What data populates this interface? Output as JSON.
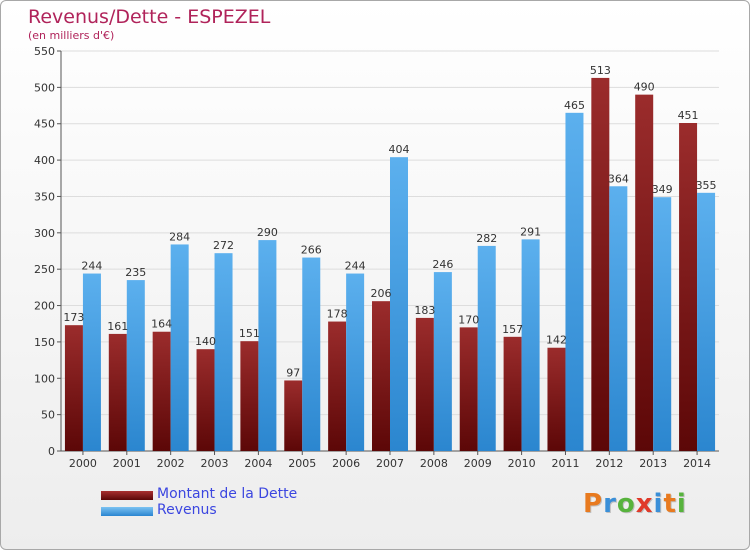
{
  "header": {
    "title": "Revenus/Dette - ESPEZEL",
    "subtitle": "(en milliers d'€)"
  },
  "brand": {
    "text": "Proxiti",
    "letter_colors": [
      "#e87a1f",
      "#3a8fd8",
      "#57b33d",
      "#e03a2a",
      "#3a8fd8",
      "#e87a1f",
      "#57b33d"
    ]
  },
  "colors": {
    "dette": "#7a1010",
    "revenus": "#3d9be0",
    "axis": "#555555",
    "grid": "#dddddd",
    "label": "#333333"
  },
  "chart_data": {
    "type": "bar",
    "categories": [
      "2000",
      "2001",
      "2002",
      "2003",
      "2004",
      "2005",
      "2006",
      "2007",
      "2008",
      "2009",
      "2010",
      "2011",
      "2012",
      "2013",
      "2014"
    ],
    "series": [
      {
        "name": "Montant de la Dette",
        "values": [
          173,
          161,
          164,
          140,
          151,
          97,
          178,
          206,
          183,
          170,
          157,
          142,
          513,
          490,
          451
        ]
      },
      {
        "name": "Revenus",
        "values": [
          244,
          235,
          284,
          272,
          290,
          266,
          244,
          404,
          246,
          282,
          291,
          465,
          364,
          349,
          355
        ]
      }
    ],
    "yticks": [
      0,
      50,
      100,
      150,
      200,
      250,
      300,
      350,
      400,
      450,
      500,
      550
    ],
    "ylim": [
      0,
      550
    ],
    "grid": true,
    "legend_position": "bottom-left"
  }
}
